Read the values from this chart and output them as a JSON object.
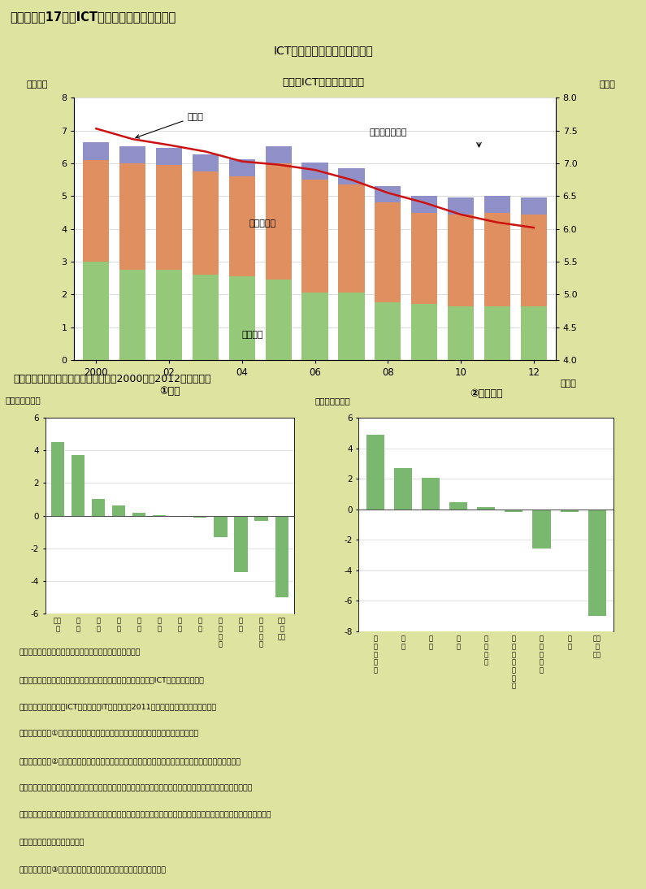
{
  "bg_color": "#dfe3a0",
  "title_bg": "#c8cc6c",
  "title": "第３－１－17図　ICT関連学科の卒業者数推移",
  "subtitle1": "ICT関連の卒業者数は減少傾向",
  "subtitle2": "（１）ICT関連の卒業者数",
  "years_labels": [
    "2000",
    "02",
    "04",
    "06",
    "08",
    "10",
    "12（年）"
  ],
  "n_bars": 13,
  "senshuu": [
    3.0,
    2.75,
    2.75,
    2.6,
    2.55,
    2.45,
    2.05,
    2.05,
    1.75,
    1.7,
    1.65,
    1.65,
    1.65
  ],
  "kosen_daigaku": [
    3.1,
    3.25,
    3.2,
    3.15,
    3.05,
    3.55,
    3.45,
    3.3,
    3.05,
    2.8,
    2.8,
    2.85,
    2.8
  ],
  "daigakuin": [
    0.55,
    0.52,
    0.52,
    0.52,
    0.52,
    0.52,
    0.52,
    0.5,
    0.5,
    0.5,
    0.5,
    0.5,
    0.5
  ],
  "ratio": [
    7.53,
    7.37,
    7.28,
    7.18,
    7.03,
    6.98,
    6.9,
    6.75,
    6.55,
    6.4,
    6.22,
    6.1,
    6.02
  ],
  "bar_color_senshuu": "#96c87a",
  "bar_color_kosen": "#e09060",
  "bar_color_daigakuin": "#9090c8",
  "line_color": "#cc1111",
  "ylabel1_left": "（万人）",
  "ylabel1_right": "（％）",
  "xlabel1": "（年）",
  "label_daigakuin": "大学院",
  "label_kosen": "高専・大学",
  "label_senshuu": "専修学校",
  "label_ratio": "割合（目盛右）",
  "section2_title": "（２）学科別卒業者数シェアの変化（2000年と2012年の比較）",
  "daigaku_title": "①大学",
  "senshuu2_title": "②専修学校",
  "daigaku_labels": [
    "その\n他",
    "保\n健",
    "家\n政",
    "教\n育",
    "芸\n術",
    "農\n学",
    "商\n船",
    "理\n学",
    "人\n文\n科\n学",
    "工\n学",
    "社\n会\n科\n学",
    "（学\n科\n計）"
  ],
  "daigaku_values": [
    4.5,
    3.7,
    1.0,
    0.6,
    0.18,
    0.05,
    -0.05,
    -0.12,
    -1.3,
    -3.45,
    -0.3,
    -5.0
  ],
  "senshuu2_labels": [
    "文\n化\n・\n教\n養",
    "衛\n生",
    "医\n療",
    "農\n業",
    "商\n業\n実\n務",
    "教\n育\n・\n社\n会\n福\n祉",
    "服\n飾\n・\n家\n政",
    "工\n業",
    "（学\n科\n計）"
  ],
  "senshuu2_values": [
    4.9,
    2.7,
    2.05,
    0.45,
    0.12,
    -0.2,
    -2.6,
    -0.15,
    -7.0
  ],
  "bar_color_pos": "#7ab870",
  "bar_color_neg": "#7ab870",
  "daigaku_ylim": [
    -6,
    6
  ],
  "senshuu2_ylim": [
    -8,
    6
  ],
  "ylabel2": "（％ポイント）",
  "note_lines": [
    "（備考）　１．文部科学省「学校基本調査」により作成。",
    "　　　　　２．（１）に示した割合は各学校の全卒業生に占めるICT関連学科の割合。",
    "　　　　　　　また、ICT関連学科はIT戦略本部（2011）を参考に次のとおりとした。",
    "　　　　　　　①専修学校：電子計算機、情報処理、電気・電子、無線・通信、情報",
    "　　　　　　　②高専：経営情報学科、コミュニケーション情報学科、制御情報工学科、電子情報工学科",
    "　　　　　　　　　　　情報電子工学科、情報工学科、流通情報工学科、情報通信工学科、情報デザイン学科、",
    "　　　　　　　　　　　情報通信システム工学科、メディア情報工学科、電気情報工学科、国際コミュニケーション情報",
    "　　　　　　　　　　　工学科",
    "　　　　　　　③大学・大学院：電気通信工学（工学に含まれる。）"
  ]
}
